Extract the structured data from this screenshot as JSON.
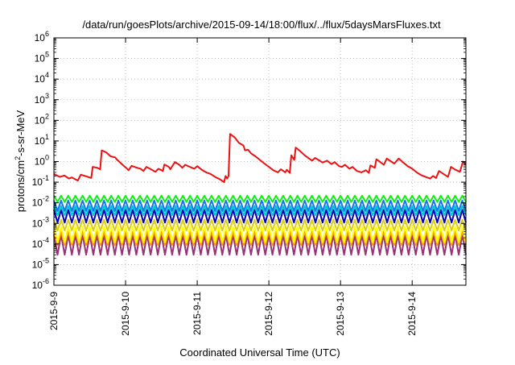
{
  "chart_data": {
    "type": "line",
    "title": "/data/run/goesPlots/archive/2015-09-14/18:00/flux/../flux/5daysMarsFluxes.txt",
    "xlabel": "Coordinated Universal Time (UTC)",
    "ylabel_parts": {
      "pre": "protons/cm",
      "sup": "2",
      "post": "-s-sr-MeV"
    },
    "y_scale": "log",
    "ylim": [
      1e-06,
      1000000.0
    ],
    "y_ticks": [
      {
        "value": 1e-06,
        "base": "10",
        "exp": "-6"
      },
      {
        "value": 1e-05,
        "base": "10",
        "exp": "-5"
      },
      {
        "value": 0.0001,
        "base": "10",
        "exp": "-4"
      },
      {
        "value": 0.001,
        "base": "10",
        "exp": "-3"
      },
      {
        "value": 0.01,
        "base": "10",
        "exp": "-2"
      },
      {
        "value": 0.1,
        "base": "10",
        "exp": "-1"
      },
      {
        "value": 1.0,
        "base": "10",
        "exp": "0"
      },
      {
        "value": 10.0,
        "base": "10",
        "exp": "1"
      },
      {
        "value": 100.0,
        "base": "10",
        "exp": "2"
      },
      {
        "value": 1000.0,
        "base": "10",
        "exp": "3"
      },
      {
        "value": 10000.0,
        "base": "10",
        "exp": "4"
      },
      {
        "value": 100000.0,
        "base": "10",
        "exp": "5"
      },
      {
        "value": 1000000.0,
        "base": "10",
        "exp": "6"
      }
    ],
    "x_range": [
      "2015-09-09 00:00",
      "2015-09-14 18:00"
    ],
    "x_ticks": [
      "2015-9-9",
      "2015-9-10",
      "2015-9-11",
      "2015-9-12",
      "2015-9-13",
      "2015-9-14"
    ],
    "grid": true,
    "legend": "none",
    "series": [
      {
        "color": "#ee1111",
        "points": [
          [
            "2015-09-09 00:00",
            0.25
          ],
          [
            "2015-09-09 02:00",
            0.18
          ],
          [
            "2015-09-09 03:30",
            0.21
          ],
          [
            "2015-09-09 05:00",
            0.15
          ],
          [
            "2015-09-09 06:00",
            0.17
          ],
          [
            "2015-09-09 08:00",
            0.12
          ],
          [
            "2015-09-09 09:00",
            0.23
          ],
          [
            "2015-09-09 10:30",
            0.2
          ],
          [
            "2015-09-09 12:30",
            0.16
          ],
          [
            "2015-09-09 13:00",
            0.55
          ],
          [
            "2015-09-09 14:30",
            0.5
          ],
          [
            "2015-09-09 15:30",
            0.42
          ],
          [
            "2015-09-09 16:00",
            3.5
          ],
          [
            "2015-09-09 17:30",
            2.8
          ],
          [
            "2015-09-09 19:00",
            1.8
          ],
          [
            "2015-09-09 20:30",
            1.6
          ],
          [
            "2015-09-09 21:00",
            1.3
          ],
          [
            "2015-09-09 23:00",
            0.7
          ],
          [
            "2015-09-10 00:30",
            0.45
          ],
          [
            "2015-09-10 01:00",
            0.38
          ],
          [
            "2015-09-10 02:00",
            0.62
          ],
          [
            "2015-09-10 03:30",
            0.52
          ],
          [
            "2015-09-10 05:00",
            0.45
          ],
          [
            "2015-09-10 06:00",
            0.35
          ],
          [
            "2015-09-10 07:00",
            0.55
          ],
          [
            "2015-09-10 08:30",
            0.42
          ],
          [
            "2015-09-10 10:00",
            0.32
          ],
          [
            "2015-09-10 11:00",
            0.45
          ],
          [
            "2015-09-10 12:30",
            0.35
          ],
          [
            "2015-09-10 13:00",
            0.72
          ],
          [
            "2015-09-10 14:30",
            0.55
          ],
          [
            "2015-09-10 15:00",
            0.42
          ],
          [
            "2015-09-10 16:30",
            0.95
          ],
          [
            "2015-09-10 18:00",
            0.7
          ],
          [
            "2015-09-10 19:00",
            0.5
          ],
          [
            "2015-09-10 20:00",
            0.7
          ],
          [
            "2015-09-10 21:30",
            0.55
          ],
          [
            "2015-09-10 23:00",
            0.45
          ],
          [
            "2015-09-11 00:00",
            0.6
          ],
          [
            "2015-09-11 01:30",
            0.4
          ],
          [
            "2015-09-11 03:00",
            0.3
          ],
          [
            "2015-09-11 04:30",
            0.25
          ],
          [
            "2015-09-11 06:00",
            0.18
          ],
          [
            "2015-09-11 07:30",
            0.14
          ],
          [
            "2015-09-11 09:00",
            0.1
          ],
          [
            "2015-09-11 09:30",
            0.2
          ],
          [
            "2015-09-11 10:00",
            0.15
          ],
          [
            "2015-09-11 10:30",
            0.2
          ],
          [
            "2015-09-11 11:00",
            22
          ],
          [
            "2015-09-11 12:30",
            15
          ],
          [
            "2015-09-11 14:00",
            8
          ],
          [
            "2015-09-11 15:30",
            6
          ],
          [
            "2015-09-11 16:00",
            3.5
          ],
          [
            "2015-09-11 17:00",
            3.8
          ],
          [
            "2015-09-11 18:00",
            2.5
          ],
          [
            "2015-09-11 19:30",
            1.8
          ],
          [
            "2015-09-11 21:00",
            1.2
          ],
          [
            "2015-09-11 22:30",
            0.8
          ],
          [
            "2015-09-12 00:00",
            0.55
          ],
          [
            "2015-09-12 01:30",
            0.38
          ],
          [
            "2015-09-12 03:00",
            0.3
          ],
          [
            "2015-09-12 04:00",
            0.42
          ],
          [
            "2015-09-12 05:30",
            0.3
          ],
          [
            "2015-09-12 06:00",
            0.4
          ],
          [
            "2015-09-12 07:00",
            0.28
          ],
          [
            "2015-09-12 07:30",
            2.0
          ],
          [
            "2015-09-12 08:30",
            1.2
          ],
          [
            "2015-09-12 09:00",
            4.8
          ],
          [
            "2015-09-12 10:30",
            3.2
          ],
          [
            "2015-09-12 12:00",
            2.0
          ],
          [
            "2015-09-12 13:30",
            1.4
          ],
          [
            "2015-09-12 14:30",
            1.1
          ],
          [
            "2015-09-12 15:30",
            1.5
          ],
          [
            "2015-09-12 17:00",
            1.1
          ],
          [
            "2015-09-12 18:00",
            0.9
          ],
          [
            "2015-09-12 19:30",
            1.1
          ],
          [
            "2015-09-12 21:00",
            0.75
          ],
          [
            "2015-09-12 22:00",
            0.95
          ],
          [
            "2015-09-12 23:30",
            0.6
          ],
          [
            "2015-09-13 00:30",
            0.55
          ],
          [
            "2015-09-13 01:30",
            0.7
          ],
          [
            "2015-09-13 03:00",
            0.45
          ],
          [
            "2015-09-13 04:00",
            0.55
          ],
          [
            "2015-09-13 05:30",
            0.35
          ],
          [
            "2015-09-13 07:00",
            0.3
          ],
          [
            "2015-09-13 08:30",
            0.38
          ],
          [
            "2015-09-13 09:30",
            0.28
          ],
          [
            "2015-09-13 10:00",
            0.65
          ],
          [
            "2015-09-13 11:30",
            0.5
          ],
          [
            "2015-09-13 12:00",
            1.3
          ],
          [
            "2015-09-13 13:30",
            0.9
          ],
          [
            "2015-09-13 14:30",
            0.7
          ],
          [
            "2015-09-13 15:30",
            1.4
          ],
          [
            "2015-09-13 17:00",
            1.0
          ],
          [
            "2015-09-13 18:00",
            0.8
          ],
          [
            "2015-09-13 19:30",
            1.4
          ],
          [
            "2015-09-13 21:00",
            0.9
          ],
          [
            "2015-09-13 22:30",
            0.6
          ],
          [
            "2015-09-14 00:00",
            0.45
          ],
          [
            "2015-09-14 01:30",
            0.3
          ],
          [
            "2015-09-14 03:00",
            0.22
          ],
          [
            "2015-09-14 04:30",
            0.18
          ],
          [
            "2015-09-14 06:00",
            0.15
          ],
          [
            "2015-09-14 07:00",
            0.2
          ],
          [
            "2015-09-14 08:00",
            0.16
          ],
          [
            "2015-09-14 09:00",
            0.35
          ],
          [
            "2015-09-14 10:30",
            0.25
          ],
          [
            "2015-09-14 12:00",
            0.18
          ],
          [
            "2015-09-14 13:00",
            0.55
          ],
          [
            "2015-09-14 14:30",
            0.4
          ],
          [
            "2015-09-14 16:00",
            0.32
          ],
          [
            "2015-09-14 17:00",
            1.0
          ],
          [
            "2015-09-14 18:00",
            0.7
          ]
        ]
      },
      {
        "color": "#11ee11",
        "pattern": "sawtooth",
        "cycle_hours": 2.4,
        "high": 0.022,
        "low": 0.011
      },
      {
        "color": "#00cccc",
        "pattern": "sawtooth",
        "cycle_hours": 2.4,
        "high": 0.007,
        "low": 0.0025
      },
      {
        "color": "#1177ee",
        "pattern": "sawtooth",
        "cycle_hours": 2.4,
        "high": 0.013,
        "low": 0.004
      },
      {
        "color": "#0000bb",
        "pattern": "sawtooth",
        "cycle_hours": 2.4,
        "high": 0.0045,
        "low": 0.0011
      },
      {
        "color": "#ddcc11",
        "pattern": "sawtooth",
        "cycle_hours": 2.4,
        "high": 0.0015,
        "low": 0.00045
      },
      {
        "color": "#ffff00",
        "pattern": "sawtooth",
        "cycle_hours": 2.4,
        "high": 0.0007,
        "low": 0.00012
      },
      {
        "color": "#ff9900",
        "pattern": "sawtooth",
        "cycle_hours": 2.4,
        "high": 0.0004,
        "low": 9e-05
      },
      {
        "color": "#993377",
        "pattern": "sawtooth",
        "cycle_hours": 2.4,
        "high": 0.00028,
        "low": 3e-05
      }
    ]
  }
}
